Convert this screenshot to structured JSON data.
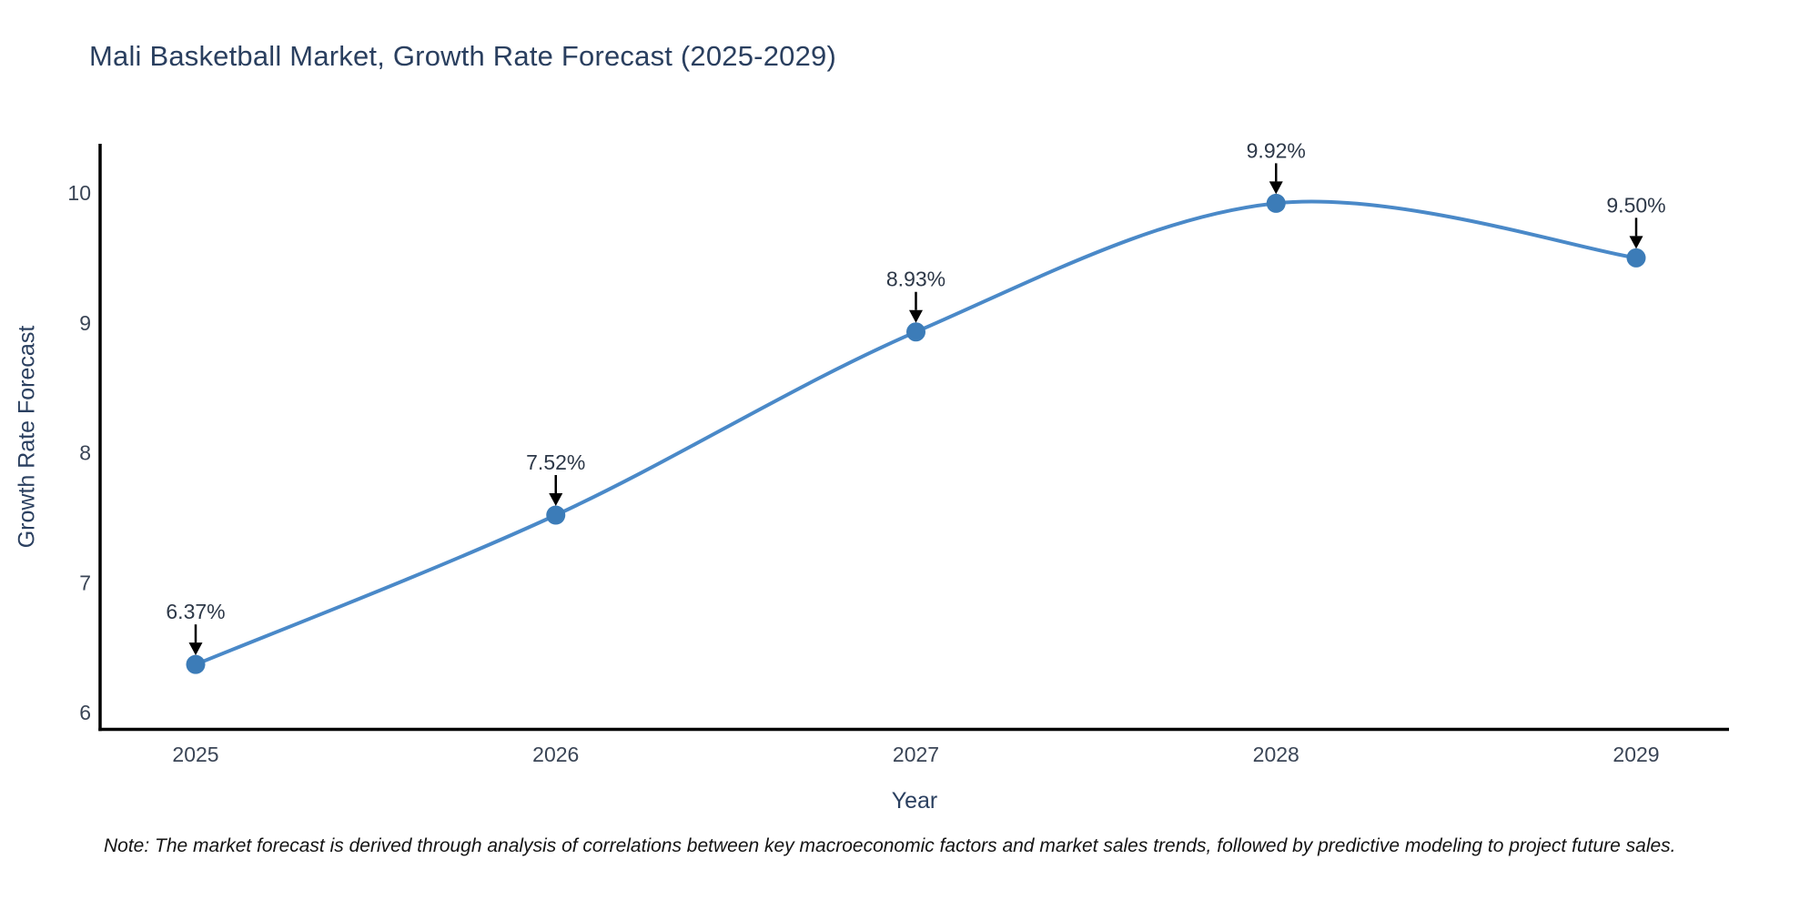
{
  "note": "Note: The market forecast is derived through analysis of correlations between key macroeconomic factors and market sales trends, followed by predictive modeling to project future sales.",
  "chart_data": {
    "type": "line",
    "title": "Mali Basketball Market, Growth Rate Forecast (2025-2029)",
    "x": [
      2025,
      2026,
      2027,
      2028,
      2029
    ],
    "series": [
      {
        "name": "Growth Rate Forecast",
        "values": [
          6.37,
          7.52,
          8.93,
          9.92,
          9.5
        ]
      }
    ],
    "point_labels": [
      "6.37%",
      "7.52%",
      "8.93%",
      "9.92%",
      "9.50%"
    ],
    "xlabel": "Year",
    "ylabel": "Growth Rate Forecast",
    "xticks": [
      "2025",
      "2026",
      "2027",
      "2028",
      "2029"
    ],
    "yticks": [
      6,
      7,
      8,
      9,
      10
    ],
    "ylim": [
      5.87,
      10.38
    ],
    "grid": false,
    "legend": false,
    "line_shape": "spline",
    "colors": {
      "line": "#4a89c8",
      "marker": "#3c7cb8",
      "axis": "#000000",
      "tick_text": "#3a4556",
      "annotation_text": "#2d3848",
      "annotation_arrow": "#000000",
      "title_text": "#2a3f5f"
    }
  }
}
